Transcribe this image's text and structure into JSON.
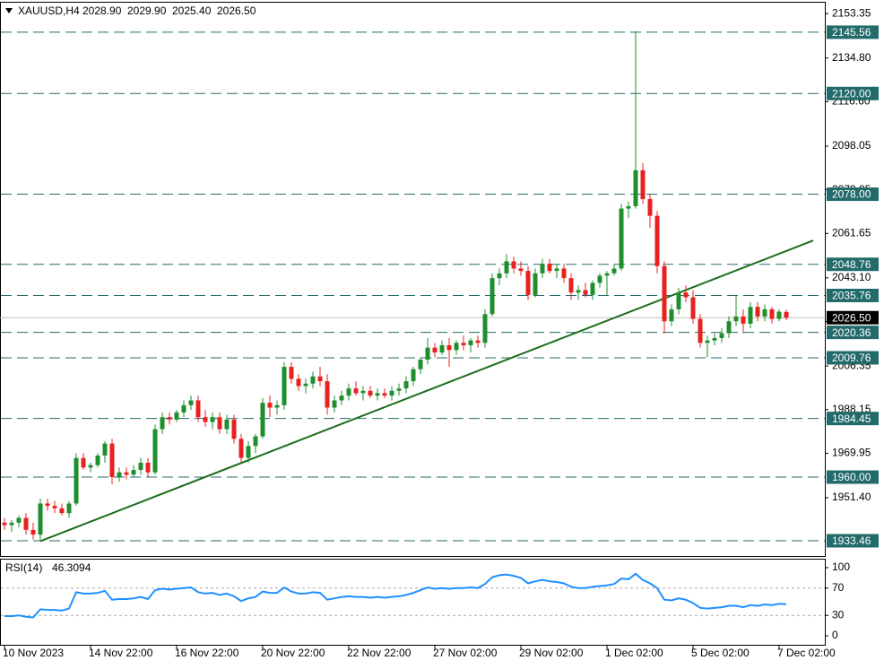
{
  "chart_data": {
    "type": "candlestick",
    "symbol": "XAUUSD,H4",
    "header_values": [
      "2028.90",
      "2029.90",
      "2025.40",
      "2026.50"
    ],
    "categories": [
      "10 Nov 2023",
      null,
      null,
      null,
      null,
      null,
      null,
      null,
      null,
      null,
      null,
      null,
      "14 Nov 22:00",
      null,
      null,
      null,
      null,
      null,
      null,
      null,
      null,
      null,
      null,
      null,
      "16 Nov 22:00",
      null,
      null,
      null,
      null,
      null,
      null,
      null,
      null,
      null,
      null,
      null,
      "20 Nov 22:00",
      null,
      null,
      null,
      null,
      null,
      null,
      null,
      null,
      null,
      null,
      null,
      "22 Nov 22:00",
      null,
      null,
      null,
      null,
      null,
      null,
      null,
      null,
      null,
      null,
      null,
      "27 Nov 02:00",
      null,
      null,
      null,
      null,
      null,
      null,
      null,
      null,
      null,
      null,
      null,
      "29 Nov 02:00",
      null,
      null,
      null,
      null,
      null,
      null,
      null,
      null,
      null,
      null,
      null,
      "1 Dec 02:00",
      null,
      null,
      null,
      null,
      null,
      null,
      null,
      null,
      null,
      null,
      null,
      "5 Dec 02:00",
      null,
      null,
      null,
      null,
      null,
      null,
      null,
      null,
      null,
      null,
      null,
      "7 Dec 02:00",
      null
    ],
    "candles": [
      [
        1941,
        1943,
        1938,
        1940
      ],
      [
        1940,
        1942,
        1937,
        1941
      ],
      [
        1941,
        1944,
        1939,
        1943
      ],
      [
        1943,
        1945,
        1936,
        1938
      ],
      [
        1938,
        1941,
        1934,
        1936
      ],
      [
        1936,
        1951,
        1933.5,
        1949
      ],
      [
        1949,
        1951,
        1946,
        1948
      ],
      [
        1948,
        1950,
        1945,
        1947
      ],
      [
        1947,
        1949,
        1944,
        1945
      ],
      [
        1945,
        1950,
        1943,
        1949
      ],
      [
        1949,
        1970,
        1948,
        1968
      ],
      [
        1968,
        1970,
        1963,
        1964
      ],
      [
        1964,
        1966,
        1962,
        1965
      ],
      [
        1965,
        1970,
        1964,
        1969
      ],
      [
        1969,
        1975,
        1966,
        1974
      ],
      [
        1974,
        1976,
        1957,
        1960
      ],
      [
        1960,
        1964,
        1958,
        1962
      ],
      [
        1962,
        1964,
        1959,
        1961
      ],
      [
        1961,
        1965,
        1960,
        1963
      ],
      [
        1963,
        1968,
        1961,
        1966
      ],
      [
        1966,
        1968,
        1960,
        1962
      ],
      [
        1962,
        1982,
        1961,
        1980
      ],
      [
        1980,
        1987,
        1978,
        1985
      ],
      [
        1985,
        1987,
        1982,
        1984
      ],
      [
        1984,
        1988,
        1983,
        1987
      ],
      [
        1987,
        1992,
        1985,
        1990
      ],
      [
        1990,
        1994,
        1988,
        1992
      ],
      [
        1992,
        1994,
        1983,
        1985
      ],
      [
        1985,
        1988,
        1981,
        1983
      ],
      [
        1983,
        1987,
        1980,
        1985
      ],
      [
        1985,
        1987,
        1978,
        1980
      ],
      [
        1980,
        1986,
        1978,
        1984
      ],
      [
        1984,
        1986,
        1974,
        1976
      ],
      [
        1976,
        1978,
        1966,
        1968
      ],
      [
        1968,
        1975,
        1966,
        1973
      ],
      [
        1973,
        1978,
        1970,
        1977
      ],
      [
        1977,
        1993,
        1976,
        1991
      ],
      [
        1991,
        1994,
        1985,
        1989
      ],
      [
        1989,
        1992,
        1986,
        1990
      ],
      [
        1990,
        2008,
        1988,
        2006
      ],
      [
        2006,
        2008,
        1999,
        2001
      ],
      [
        2001,
        2003,
        1996,
        1998
      ],
      [
        1998,
        2001,
        1995,
        1999
      ],
      [
        1999,
        2004,
        1997,
        2002
      ],
      [
        2002,
        2006,
        1998,
        2000
      ],
      [
        2000,
        2003,
        1986,
        1989
      ],
      [
        1989,
        1994,
        1987,
        1992
      ],
      [
        1992,
        1996,
        1990,
        1994
      ],
      [
        1994,
        1999,
        1992,
        1997
      ],
      [
        1997,
        2000,
        1994,
        1995
      ],
      [
        1995,
        1998,
        1992,
        1996
      ],
      [
        1996,
        1998,
        1993,
        1994
      ],
      [
        1994,
        1997,
        1992,
        1995
      ],
      [
        1995,
        1997,
        1993,
        1994
      ],
      [
        1994,
        1998,
        1992,
        1996
      ],
      [
        1996,
        1999,
        1994,
        1997
      ],
      [
        1997,
        2002,
        1995,
        2000
      ],
      [
        2000,
        2006,
        1998,
        2005
      ],
      [
        2005,
        2010,
        2003,
        2009
      ],
      [
        2009,
        2018,
        2007,
        2014
      ],
      [
        2014,
        2016,
        2010,
        2012
      ],
      [
        2012,
        2017,
        2011,
        2015
      ],
      [
        2015,
        2018,
        2006,
        2013
      ],
      [
        2013,
        2017,
        2011,
        2016
      ],
      [
        2016,
        2019,
        2013,
        2015
      ],
      [
        2015,
        2018,
        2012,
        2017
      ],
      [
        2017,
        2019,
        2014,
        2016
      ],
      [
        2016,
        2030,
        2014,
        2028
      ],
      [
        2028,
        2045,
        2027,
        2043
      ],
      [
        2043,
        2047,
        2040,
        2045
      ],
      [
        2045,
        2053,
        2043,
        2050
      ],
      [
        2050,
        2052,
        2045,
        2047
      ],
      [
        2047,
        2050,
        2044,
        2046
      ],
      [
        2046,
        2048,
        2034,
        2036
      ],
      [
        2036,
        2047,
        2035,
        2045
      ],
      [
        2045,
        2051,
        2043,
        2049
      ],
      [
        2049,
        2051,
        2045,
        2046
      ],
      [
        2046,
        2049,
        2043,
        2047
      ],
      [
        2047,
        2049,
        2041,
        2043
      ],
      [
        2043,
        2045,
        2034,
        2037
      ],
      [
        2037,
        2040,
        2034,
        2038
      ],
      [
        2038,
        2041,
        2035,
        2036
      ],
      [
        2036,
        2042,
        2034,
        2041
      ],
      [
        2041,
        2045,
        2039,
        2044
      ],
      [
        2044,
        2046,
        2036,
        2045
      ],
      [
        2045,
        2049,
        2044,
        2047
      ],
      [
        2047,
        2074,
        2046,
        2072
      ],
      [
        2072,
        2075,
        2068,
        2073
      ],
      [
        2073,
        2146,
        2072,
        2088
      ],
      [
        2088,
        2091,
        2074,
        2076
      ],
      [
        2076,
        2078,
        2064,
        2069
      ],
      [
        2069,
        2071,
        2045,
        2048
      ],
      [
        2048,
        2050,
        2020,
        2025
      ],
      [
        2025,
        2032,
        2023,
        2030
      ],
      [
        2030,
        2039,
        2028,
        2037
      ],
      [
        2037,
        2040,
        2033,
        2035
      ],
      [
        2035,
        2038,
        2024,
        2026
      ],
      [
        2026,
        2028,
        2014,
        2016
      ],
      [
        2016,
        2019,
        2010,
        2017
      ],
      [
        2017,
        2020,
        2015,
        2018
      ],
      [
        2018,
        2022,
        2016,
        2020
      ],
      [
        2020,
        2027,
        2018,
        2025
      ],
      [
        2025,
        2036,
        2023,
        2027
      ],
      [
        2027,
        2030,
        2020,
        2024
      ],
      [
        2024,
        2033,
        2022,
        2031
      ],
      [
        2031,
        2033,
        2025,
        2027
      ],
      [
        2027,
        2032,
        2025,
        2030
      ],
      [
        2030,
        2031,
        2024,
        2026
      ],
      [
        2026,
        2030,
        2025,
        2029
      ],
      [
        2028.9,
        2029.9,
        2025.4,
        2026.5
      ]
    ],
    "up_color": "#1f8f2e",
    "down_color": "#e8201e",
    "ylim": [
      1927.1,
      2157.5
    ],
    "yticks": [
      {
        "value": 2153.35,
        "label": "2153.35"
      },
      {
        "value": 2134.8,
        "label": "2134.80"
      },
      {
        "value": 2116.6,
        "label": "2116.60"
      },
      {
        "value": 2098.05,
        "label": "2098.05"
      },
      {
        "value": 2079.85,
        "label": "2079.85"
      },
      {
        "value": 2061.65,
        "label": "2061.65"
      },
      {
        "value": 2043.1,
        "label": "2043.10"
      },
      {
        "value": 2024.9,
        "label": "2024.90"
      },
      {
        "value": 2006.35,
        "label": "2006.35"
      },
      {
        "value": 1988.15,
        "label": "1988.15"
      },
      {
        "value": 1969.95,
        "label": "1969.95"
      },
      {
        "value": 1951.4,
        "label": "1951.40"
      }
    ],
    "levels": [
      {
        "value": 2145.56,
        "label": "2145.56"
      },
      {
        "value": 2120,
        "label": "2120.00"
      },
      {
        "value": 2078,
        "label": "2078.00"
      },
      {
        "value": 2048.76,
        "label": "2048.76"
      },
      {
        "value": 2035.76,
        "label": "2035.76"
      },
      {
        "value": 2020.36,
        "label": "2020.36"
      },
      {
        "value": 2009.76,
        "label": "2009.76"
      },
      {
        "value": 1984.45,
        "label": "1984.45"
      },
      {
        "value": 1960,
        "label": "1960.00"
      },
      {
        "value": 1933.46,
        "label": "1933.46"
      }
    ],
    "level_color": "#236a6a",
    "current_price": {
      "value": 2026.5,
      "label": "2026.50"
    },
    "trendline": {
      "x": [
        5,
        112.75
      ],
      "y": [
        1933.3,
        2058.7
      ],
      "color": "#1b6e1b"
    },
    "rsi": {
      "title": "RSI(14)",
      "color": "#1e90ff",
      "ylim": [
        0,
        100
      ],
      "yticks": [
        0,
        30,
        70,
        100
      ],
      "levels": [
        30,
        70
      ],
      "values": [
        29,
        29,
        30,
        28,
        27,
        39,
        38,
        38,
        37,
        40,
        64,
        62,
        62,
        63,
        66,
        53,
        54,
        54,
        55,
        57,
        54,
        67,
        69,
        68,
        69,
        70,
        71,
        64,
        62,
        63,
        60,
        62,
        58,
        51,
        55,
        57,
        65,
        63,
        63,
        71,
        65,
        62,
        62,
        64,
        63,
        53,
        55,
        57,
        58,
        57,
        57,
        56,
        57,
        56,
        57,
        58,
        60,
        63,
        67,
        71,
        69,
        70,
        69,
        70,
        70,
        71,
        70,
        76,
        86,
        89,
        90,
        88,
        85,
        77,
        80,
        82,
        80,
        79,
        77,
        72,
        70,
        70,
        72,
        73,
        74,
        76,
        84,
        83,
        91,
        82,
        77,
        70,
        53,
        52,
        55,
        53,
        48,
        41,
        40,
        41,
        42,
        44,
        44,
        42,
        45,
        44,
        46,
        45,
        47,
        46.3094
      ]
    }
  }
}
